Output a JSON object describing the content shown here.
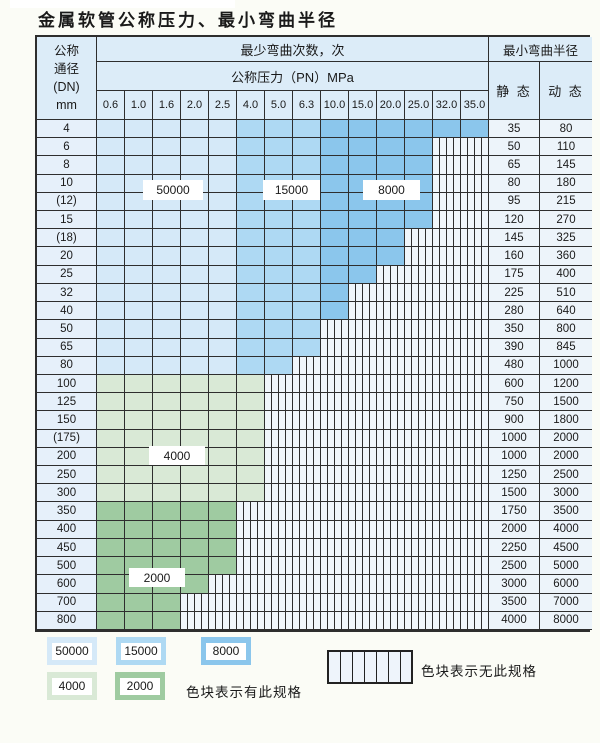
{
  "title": "金属软管公称压力、最小弯曲半径",
  "colors": {
    "blue_50000": "#d5e9f8",
    "blue_15000": "#aed9f3",
    "blue_8000": "#8bc6ec",
    "green_4000": "#d9e9d6",
    "green_2000": "#9fcba1",
    "header_bg": "#dcecf8"
  },
  "table": {
    "corner_lines": [
      "公称",
      "通径",
      "(DN)",
      "mm"
    ],
    "bend_times_header": "最少弯曲次数，次",
    "pressure_header": "公称压力（PN）MPa",
    "radius_header": "最小弯曲半径",
    "static_header": "静 态",
    "dynamic_header": "动 态",
    "pressures": [
      "0.6",
      "1.0",
      "1.6",
      "2.0",
      "2.5",
      "4.0",
      "5.0",
      "6.3",
      "10.0",
      "15.0",
      "20.0",
      "25.0",
      "32.0",
      "35.0"
    ],
    "rows": [
      {
        "dn": "4",
        "fill": "blue",
        "colored_until": 13,
        "static": "35",
        "dynamic": "80"
      },
      {
        "dn": "6",
        "fill": "blue",
        "colored_until": 11,
        "static": "50",
        "dynamic": "110"
      },
      {
        "dn": "8",
        "fill": "blue",
        "colored_until": 11,
        "static": "65",
        "dynamic": "145"
      },
      {
        "dn": "10",
        "fill": "blue",
        "colored_until": 11,
        "static": "80",
        "dynamic": "180"
      },
      {
        "dn": "(12)",
        "fill": "blue",
        "colored_until": 11,
        "static": "95",
        "dynamic": "215"
      },
      {
        "dn": "15",
        "fill": "blue",
        "colored_until": 11,
        "static": "120",
        "dynamic": "270"
      },
      {
        "dn": "(18)",
        "fill": "blue",
        "colored_until": 10,
        "static": "145",
        "dynamic": "325"
      },
      {
        "dn": "20",
        "fill": "blue",
        "colored_until": 10,
        "static": "160",
        "dynamic": "360"
      },
      {
        "dn": "25",
        "fill": "blue",
        "colored_until": 9,
        "static": "175",
        "dynamic": "400"
      },
      {
        "dn": "32",
        "fill": "blue",
        "colored_until": 8,
        "static": "225",
        "dynamic": "510"
      },
      {
        "dn": "40",
        "fill": "blue",
        "colored_until": 8,
        "static": "280",
        "dynamic": "640"
      },
      {
        "dn": "50",
        "fill": "blue",
        "colored_until": 7,
        "static": "350",
        "dynamic": "800"
      },
      {
        "dn": "65",
        "fill": "blue",
        "colored_until": 7,
        "static": "390",
        "dynamic": "845"
      },
      {
        "dn": "80",
        "fill": "blue",
        "colored_until": 6,
        "static": "480",
        "dynamic": "1000"
      },
      {
        "dn": "100",
        "fill": "green4000",
        "colored_until": 5,
        "static": "600",
        "dynamic": "1200"
      },
      {
        "dn": "125",
        "fill": "green4000",
        "colored_until": 5,
        "static": "750",
        "dynamic": "1500"
      },
      {
        "dn": "150",
        "fill": "green4000",
        "colored_until": 5,
        "static": "900",
        "dynamic": "1800"
      },
      {
        "dn": "(175)",
        "fill": "green4000",
        "colored_until": 5,
        "static": "1000",
        "dynamic": "2000"
      },
      {
        "dn": "200",
        "fill": "green4000",
        "colored_until": 5,
        "static": "1000",
        "dynamic": "2000"
      },
      {
        "dn": "250",
        "fill": "green4000",
        "colored_until": 5,
        "static": "1250",
        "dynamic": "2500"
      },
      {
        "dn": "300",
        "fill": "green4000",
        "colored_until": 5,
        "static": "1500",
        "dynamic": "3000"
      },
      {
        "dn": "350",
        "fill": "green2000",
        "colored_until": 4,
        "static": "1750",
        "dynamic": "3500"
      },
      {
        "dn": "400",
        "fill": "green2000",
        "colored_until": 4,
        "static": "2000",
        "dynamic": "4000"
      },
      {
        "dn": "450",
        "fill": "green2000",
        "colored_until": 4,
        "static": "2250",
        "dynamic": "4500"
      },
      {
        "dn": "500",
        "fill": "green2000",
        "colored_until": 4,
        "static": "2500",
        "dynamic": "5000"
      },
      {
        "dn": "600",
        "fill": "green2000",
        "colored_until": 3,
        "static": "3000",
        "dynamic": "6000"
      },
      {
        "dn": "700",
        "fill": "green2000",
        "colored_until": 2,
        "static": "3500",
        "dynamic": "7000"
      },
      {
        "dn": "800",
        "fill": "green2000",
        "colored_until": 2,
        "static": "4000",
        "dynamic": "8000"
      }
    ],
    "blue_zone_split": {
      "light_until_col": 4,
      "medium_until_col": 7
    }
  },
  "overlays": {
    "cycles_50000": "50000",
    "cycles_15000": "15000",
    "cycles_8000": "8000",
    "cycles_4000": "4000",
    "cycles_2000": "2000"
  },
  "legend": {
    "swatches": [
      {
        "label": "50000",
        "color_key": "blue_50000"
      },
      {
        "label": "15000",
        "color_key": "blue_15000"
      },
      {
        "label": "8000",
        "color_key": "blue_8000"
      },
      {
        "label": "4000",
        "color_key": "green_4000"
      },
      {
        "label": "2000",
        "color_key": "green_2000"
      }
    ],
    "note_available": "色块表示有此规格",
    "note_unavailable": "色块表示无此规格"
  }
}
